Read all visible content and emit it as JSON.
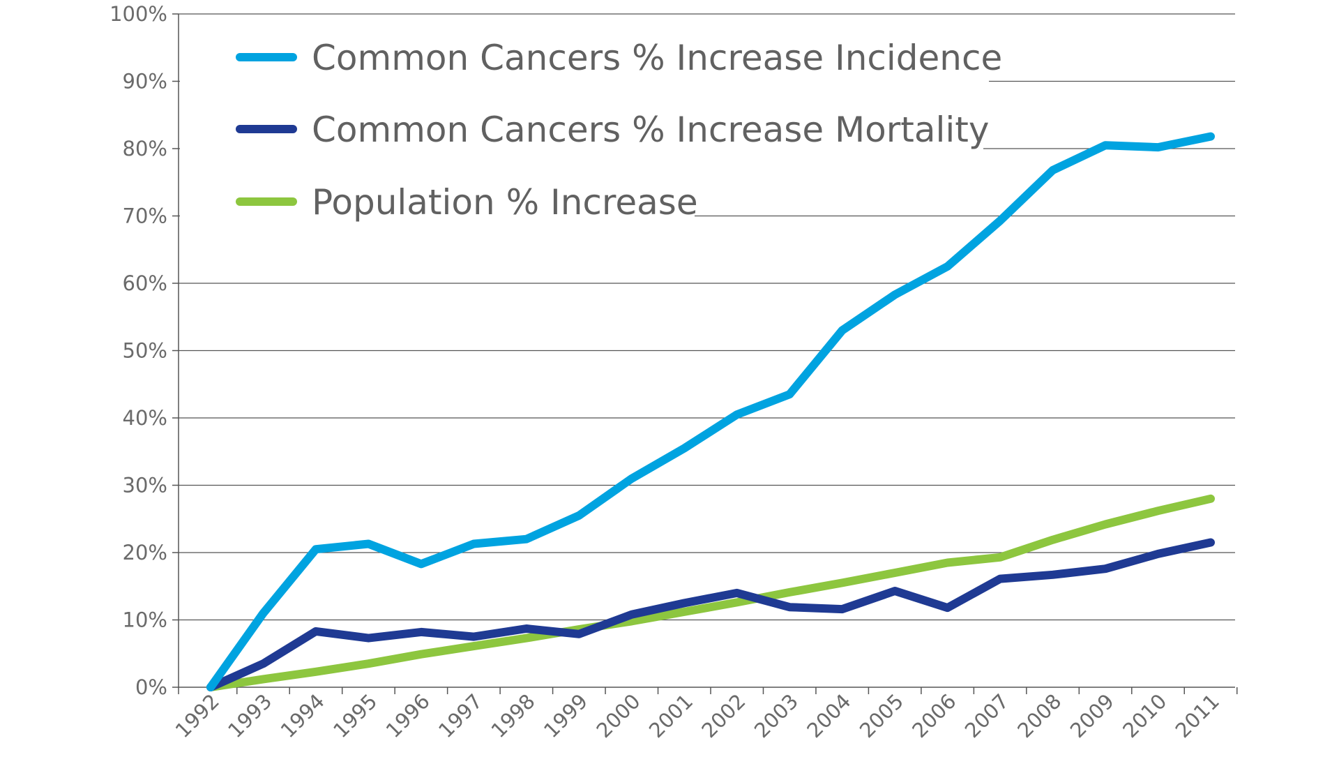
{
  "chart_data": {
    "type": "line",
    "title": "",
    "xlabel": "",
    "ylabel": "",
    "categories": [
      "1992",
      "1993",
      "1994",
      "1995",
      "1996",
      "1997",
      "1998",
      "1999",
      "2000",
      "2001",
      "2002",
      "2003",
      "2004",
      "2005",
      "2006",
      "2007",
      "2008",
      "2009",
      "2010",
      "2011"
    ],
    "ylim": [
      0,
      100
    ],
    "yticks": [
      "0%",
      "10%",
      "20%",
      "30%",
      "40%",
      "50%",
      "60%",
      "70%",
      "80%",
      "90%",
      "100%"
    ],
    "grid": true,
    "legend_position": "top-left",
    "series": [
      {
        "name": "Common Cancers % Increase Incidence",
        "color": "#00a3e0",
        "values": [
          0,
          11,
          20.5,
          21.3,
          18.3,
          21.3,
          22,
          25.5,
          31,
          35.5,
          40.5,
          43.5,
          53,
          58.3,
          62.5,
          69.3,
          76.8,
          80.5,
          80.2,
          81.8
        ]
      },
      {
        "name": "Common Cancers % Increase Mortality",
        "color": "#1f3a93",
        "values": [
          0,
          3.5,
          8.3,
          7.3,
          8.2,
          7.5,
          8.7,
          7.9,
          10.8,
          12.5,
          14,
          11.9,
          11.6,
          14.3,
          11.8,
          16.1,
          16.7,
          17.6,
          19.8,
          21.5
        ]
      },
      {
        "name": "Population % Increase",
        "color": "#8dc63f",
        "values": [
          0,
          1.2,
          2.3,
          3.5,
          4.9,
          6.1,
          7.3,
          8.6,
          9.8,
          11.2,
          12.6,
          14.1,
          15.5,
          17,
          18.5,
          19.3,
          21.9,
          24.2,
          26.2,
          28
        ]
      }
    ]
  }
}
